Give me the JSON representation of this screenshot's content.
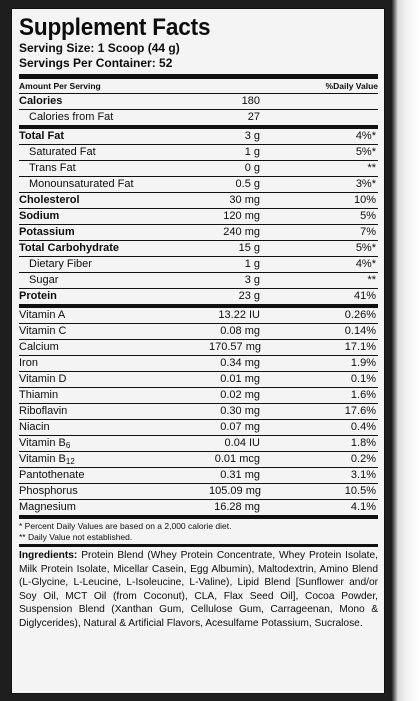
{
  "title": "Supplement Facts",
  "serving_size": "Serving Size: 1 Scoop (44 g)",
  "servings_per_container": "Servings Per Container: 52",
  "header": {
    "left": "Amount Per Serving",
    "right": "%Daily Value"
  },
  "rows": [
    {
      "name": "Calories",
      "amount": "180",
      "dv": "",
      "bold": true,
      "indent": false
    },
    {
      "name": "Calories from Fat",
      "amount": "27",
      "dv": "",
      "bold": false,
      "indent": true,
      "thick": true
    },
    {
      "name": "Total Fat",
      "amount": "3 g",
      "dv": "4%*",
      "bold": true,
      "indent": false
    },
    {
      "name": "Saturated Fat",
      "amount": "1 g",
      "dv": "5%*",
      "bold": false,
      "indent": true
    },
    {
      "name": "Trans Fat",
      "amount": "0 g",
      "dv": "**",
      "bold": false,
      "indent": true
    },
    {
      "name": "Monounsaturated Fat",
      "amount": "0.5 g",
      "dv": "3%*",
      "bold": false,
      "indent": true
    },
    {
      "name": "Cholesterol",
      "amount": "30 mg",
      "dv": "10%",
      "bold": true,
      "indent": false
    },
    {
      "name": "Sodium",
      "amount": "120 mg",
      "dv": "5%",
      "bold": true,
      "indent": false
    },
    {
      "name": "Potassium",
      "amount": "240 mg",
      "dv": "7%",
      "bold": true,
      "indent": false
    },
    {
      "name": "Total Carbohydrate",
      "amount": "15 g",
      "dv": "5%*",
      "bold": true,
      "indent": false
    },
    {
      "name": "Dietary Fiber",
      "amount": "1 g",
      "dv": "4%*",
      "bold": false,
      "indent": true
    },
    {
      "name": "Sugar",
      "amount": "3 g",
      "dv": "**",
      "bold": false,
      "indent": true
    },
    {
      "name": "Protein",
      "amount": "23 g",
      "dv": "41%",
      "bold": true,
      "indent": false,
      "thick": true
    },
    {
      "name": "Vitamin A",
      "amount": "13.22 IU",
      "dv": "0.26%",
      "bold": false,
      "indent": false
    },
    {
      "name": "Vitamin C",
      "amount": "0.08 mg",
      "dv": "0.14%",
      "bold": false,
      "indent": false
    },
    {
      "name": "Calcium",
      "amount": "170.57 mg",
      "dv": "17.1%",
      "bold": false,
      "indent": false
    },
    {
      "name": "Iron",
      "amount": "0.34 mg",
      "dv": "1.9%",
      "bold": false,
      "indent": false
    },
    {
      "name": "Vitamin D",
      "amount": "0.01 mg",
      "dv": "0.1%",
      "bold": false,
      "indent": false
    },
    {
      "name": "Thiamin",
      "amount": "0.02 mg",
      "dv": "1.6%",
      "bold": false,
      "indent": false
    },
    {
      "name": "Riboflavin",
      "amount": "0.30 mg",
      "dv": "17.6%",
      "bold": false,
      "indent": false
    },
    {
      "name": "Niacin",
      "amount": "0.07 mg",
      "dv": "0.4%",
      "bold": false,
      "indent": false
    },
    {
      "name": "Vitamin B",
      "sub": "6",
      "amount": "0.04 IU",
      "dv": "1.8%",
      "bold": false,
      "indent": false
    },
    {
      "name": "Vitamin B",
      "sub": "12",
      "amount": "0.01 mcg",
      "dv": "0.2%",
      "bold": false,
      "indent": false
    },
    {
      "name": "Pantothenate",
      "amount": "0.31 mg",
      "dv": "3.1%",
      "bold": false,
      "indent": false
    },
    {
      "name": "Phosphorus",
      "amount": "105.09 mg",
      "dv": "10.5%",
      "bold": false,
      "indent": false
    },
    {
      "name": "Magnesium",
      "amount": "16.28 mg",
      "dv": "4.1%",
      "bold": false,
      "indent": false,
      "thick": true
    }
  ],
  "footnote1": "* Percent Daily Values are based on a 2,000 calorie diet.",
  "footnote2": "** Daily Value not established.",
  "ingredients_label": "Ingredients:",
  "ingredients_text": " Protein Blend (Whey Protein Concentrate, Whey Protein Isolate, Milk Protein Isolate, Micellar Casein, Egg Albumin), Maltodextrin, Amino Blend (L-Glycine, L-Leucine, L-Isoleucine, L-Valine), Lipid Blend [Sunflower and/or Soy Oil, MCT Oil (from Coconut), CLA, Flax Seed Oil], Cocoa Powder, Suspension Blend (Xanthan Gum, Cellulose Gum, Carrageenan, Mono & Diglycerides), Natural & Artificial Flavors, Acesulfame Potassium, Sucralose."
}
